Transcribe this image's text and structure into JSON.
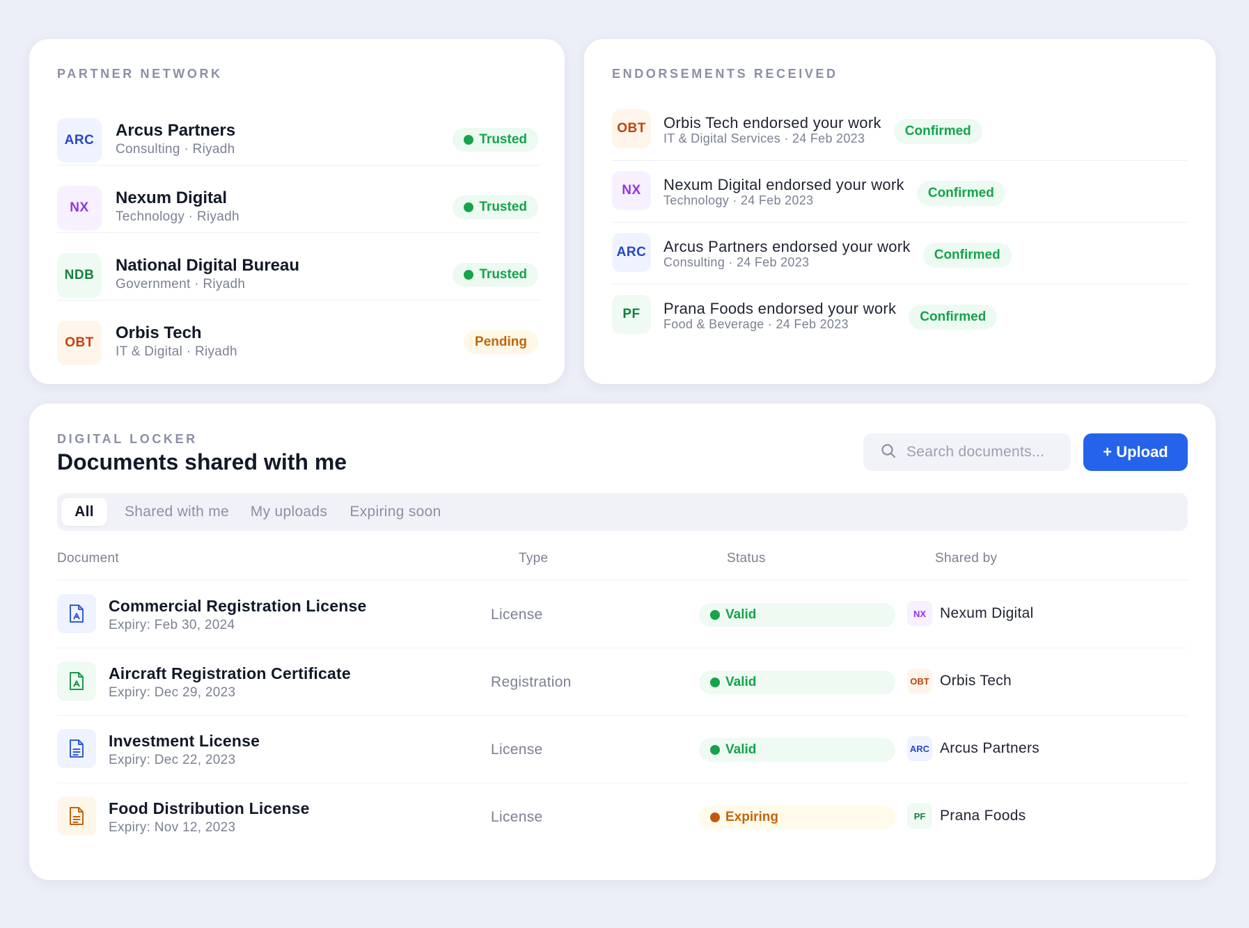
{
  "partner_network": {
    "heading": "PARTNER NETWORK",
    "items": [
      {
        "initials": "ARC",
        "name": "Arcus Partners",
        "subtitle": "Consulting · Riyadh",
        "status": "Trusted",
        "color": "blue"
      },
      {
        "initials": "NX",
        "name": "Nexum Digital",
        "subtitle": "Technology · Riyadh",
        "status": "Trusted",
        "color": "purple"
      },
      {
        "initials": "NDB",
        "name": "National Digital Bureau",
        "subtitle": "Government · Riyadh",
        "status": "Trusted",
        "color": "green"
      },
      {
        "initials": "OBT",
        "name": "Orbis Tech",
        "subtitle": "IT & Digital · Riyadh",
        "status": "Pending",
        "color": "orange"
      }
    ]
  },
  "endorsements": {
    "heading": "ENDORSEMENTS RECEIVED",
    "items": [
      {
        "initials": "OBT",
        "title": "Orbis Tech endorsed your work",
        "subtitle": "IT & Digital Services · 24 Feb 2023",
        "status": "Confirmed",
        "color": "orange"
      },
      {
        "initials": "NX",
        "title": "Nexum Digital endorsed your work",
        "subtitle": "Technology · 24 Feb 2023",
        "status": "Confirmed",
        "color": "purple"
      },
      {
        "initials": "ARC",
        "title": "Arcus Partners endorsed your work",
        "subtitle": "Consulting · 24 Feb 2023",
        "status": "Confirmed",
        "color": "blue"
      },
      {
        "initials": "PF",
        "title": "Prana Foods endorsed your work",
        "subtitle": "Food & Beverage · 24 Feb 2023",
        "status": "Confirmed",
        "color": "green"
      }
    ]
  },
  "locker": {
    "eyebrow": "DIGITAL LOCKER",
    "title": "Documents shared with me",
    "search_placeholder": "Search documents...",
    "upload_label": "+ Upload",
    "tabs": [
      {
        "label": "All",
        "active": true
      },
      {
        "label": "Shared with me",
        "active": false
      },
      {
        "label": "My uploads",
        "active": false
      },
      {
        "label": "Expiring soon",
        "active": false
      }
    ],
    "columns": [
      "Document",
      "Type",
      "Status",
      "Shared by"
    ],
    "rows": [
      {
        "icon": "certificate-file-icon",
        "icon_color": "blue",
        "name": "Commercial Registration License",
        "expiry": "Expiry: Feb 30, 2024",
        "type": "License",
        "status": "Valid",
        "shared_initials": "NX",
        "shared_color": "purple",
        "shared_by": "Nexum Digital"
      },
      {
        "icon": "certificate-file-icon",
        "icon_color": "green",
        "name": "Aircraft Registration Certificate",
        "expiry": "Expiry: Dec 29, 2023",
        "type": "Registration",
        "status": "Valid",
        "shared_initials": "OBT",
        "shared_color": "orange",
        "shared_by": "Orbis Tech"
      },
      {
        "icon": "document-file-icon",
        "icon_color": "blue",
        "name": "Investment License",
        "expiry": "Expiry: Dec 22, 2023",
        "type": "License",
        "status": "Valid",
        "shared_initials": "ARC",
        "shared_color": "blue",
        "shared_by": "Arcus Partners"
      },
      {
        "icon": "document-file-icon",
        "icon_color": "orange",
        "name": "Food Distribution License",
        "expiry": "Expiry: Nov 12, 2023",
        "type": "License",
        "status": "Expiring",
        "shared_initials": "PF",
        "shared_color": "green",
        "shared_by": "Prana Foods"
      }
    ]
  },
  "colors": {
    "accent": "#2563eb",
    "trusted": "#16a34a",
    "pending": "#c2640a",
    "background": "#eceef8"
  }
}
